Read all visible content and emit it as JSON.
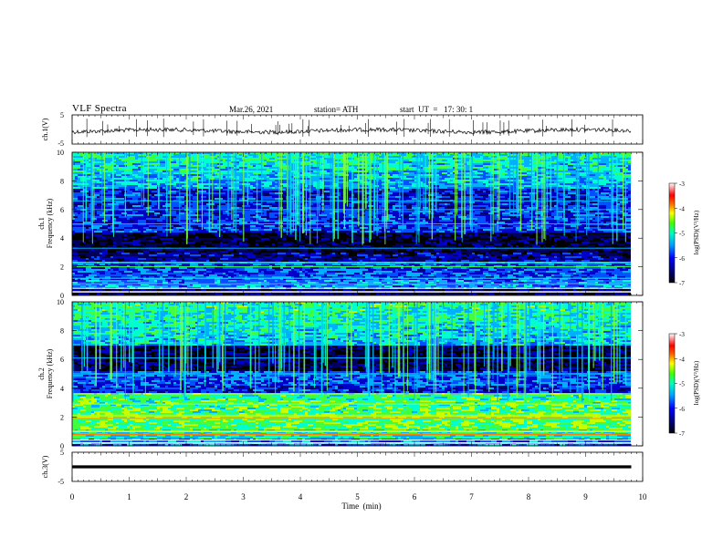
{
  "header": {
    "title": "VLF  Spectra",
    "date": "Mar.26, 2021",
    "station": "station= ATH",
    "start": "start  UT  =   17: 30: 1"
  },
  "chart_data": [
    {
      "type": "line",
      "panel": "ch1-waveform",
      "ylabel": "ch.1(V)",
      "ylim": [
        -5,
        5
      ],
      "yticks": [
        "5",
        "-5"
      ],
      "description_values": {
        "baseline": 0.0,
        "x": [
          0,
          9.8
        ]
      },
      "color": "#000000"
    },
    {
      "type": "heatmap",
      "panel": "ch1-spectrogram",
      "ylabel": "ch.1\nFrequency  (kHz)",
      "ylabel_line1": "ch.1",
      "ylabel_line2": "Frequency  (kHz)",
      "ylim": [
        0,
        10
      ],
      "xlim": [
        0,
        9.8
      ],
      "yticks": [
        "0",
        "2",
        "4",
        "6",
        "8",
        "10"
      ],
      "colorbar": {
        "label": "log(PSD)(V²/Hz)",
        "ticks": [
          "-3",
          "-4",
          "-5",
          "-6",
          "-7"
        ],
        "range": [
          -7,
          -3
        ]
      }
    },
    {
      "type": "heatmap",
      "panel": "ch2-spectrogram",
      "ylabel_line1": "ch.2",
      "ylabel_line2": "Frequency  (kHz)",
      "ylim": [
        0,
        10
      ],
      "xlim": [
        0,
        9.8
      ],
      "yticks": [
        "0",
        "2",
        "4",
        "6",
        "8",
        "10"
      ],
      "colorbar": {
        "label": "log(PSD)(V²/Hz)",
        "ticks": [
          "-3",
          "-4",
          "-5",
          "-6",
          "-7"
        ],
        "range": [
          -7,
          -3
        ]
      }
    },
    {
      "type": "line",
      "panel": "ch3-waveform",
      "ylabel": "ch.3(V)",
      "ylim": [
        -5,
        5
      ],
      "yticks": [
        "5",
        "-5"
      ],
      "description_values": {
        "baseline": 0.0,
        "x": [
          0,
          9.8
        ]
      },
      "color": "#000000"
    }
  ],
  "xaxis": {
    "label": "Time  (min)",
    "ticks": [
      "0",
      "1",
      "2",
      "3",
      "4",
      "5",
      "6",
      "7",
      "8",
      "9",
      "10"
    ],
    "range": [
      0,
      10
    ]
  },
  "colormap": [
    "#000000",
    "#000060",
    "#0000c8",
    "#0050ff",
    "#00b0ff",
    "#00ffd0",
    "#40ff40",
    "#c8ff00",
    "#ffff00",
    "#ff8000",
    "#ff0000",
    "#ffc0c0",
    "#ffffff"
  ]
}
